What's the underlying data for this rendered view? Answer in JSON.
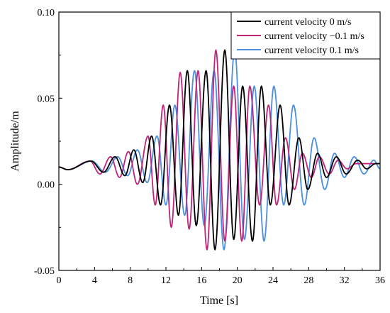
{
  "chart_data": {
    "type": "line",
    "xlabel": "Time [s]",
    "ylabel": "Amplitude/m",
    "xlim": [
      0,
      36
    ],
    "ylim": [
      -0.05,
      0.1
    ],
    "xticks": [
      "0",
      "4",
      "8",
      "12",
      "16",
      "20",
      "24",
      "28",
      "32",
      "36"
    ],
    "yticks": [
      "-0.05",
      "0.00",
      "0.05",
      "0.10"
    ],
    "legend_position": "top-right",
    "grid": false,
    "baseline": 0.01,
    "series": [
      {
        "name": "current velocity 0 m/s",
        "color": "#000000",
        "crests": [
          [
            3.6,
            0.0135
          ],
          [
            6.3,
            0.016
          ],
          [
            8.4,
            0.02
          ],
          [
            10.4,
            0.028
          ],
          [
            12.4,
            0.046
          ],
          [
            14.4,
            0.066
          ],
          [
            16.5,
            0.066
          ],
          [
            18.6,
            0.078
          ],
          [
            20.6,
            0.057
          ],
          [
            22.7,
            0.057
          ],
          [
            24.8,
            0.046
          ],
          [
            26.9,
            0.027
          ],
          [
            29.0,
            0.018
          ],
          [
            31.1,
            0.016
          ],
          [
            33.5,
            0.014
          ],
          [
            35.5,
            0.012
          ]
        ],
        "troughs": [
          [
            1.0,
            0.0085
          ],
          [
            5.0,
            0.007
          ],
          [
            7.4,
            0.005
          ],
          [
            9.4,
            0.001
          ],
          [
            11.4,
            -0.012
          ],
          [
            13.4,
            -0.018
          ],
          [
            15.4,
            -0.024
          ],
          [
            17.5,
            -0.038
          ],
          [
            19.6,
            -0.032
          ],
          [
            21.7,
            -0.033
          ],
          [
            23.7,
            -0.012
          ],
          [
            25.8,
            -0.012
          ],
          [
            27.9,
            -0.003
          ],
          [
            30.0,
            0.004
          ],
          [
            32.2,
            0.006
          ],
          [
            34.5,
            0.009
          ]
        ]
      },
      {
        "name": "current velocity −0.1 m/s",
        "color": "#c0247a",
        "crests": [
          [
            3.5,
            0.0135
          ],
          [
            5.8,
            0.016
          ],
          [
            7.8,
            0.019
          ],
          [
            10.0,
            0.028
          ],
          [
            11.7,
            0.046
          ],
          [
            13.6,
            0.065
          ],
          [
            15.6,
            0.066
          ],
          [
            17.6,
            0.078
          ],
          [
            19.6,
            0.057
          ],
          [
            21.4,
            0.057
          ],
          [
            23.5,
            0.046
          ],
          [
            25.4,
            0.027
          ],
          [
            27.3,
            0.018
          ],
          [
            29.2,
            0.016
          ],
          [
            31.3,
            0.014
          ],
          [
            33.3,
            0.012
          ]
        ],
        "troughs": [
          [
            1.0,
            0.0085
          ],
          [
            4.6,
            0.006
          ],
          [
            6.8,
            0.004
          ],
          [
            8.8,
            -0.0
          ],
          [
            10.8,
            -0.012
          ],
          [
            12.6,
            -0.025
          ],
          [
            14.6,
            -0.026
          ],
          [
            16.6,
            -0.038
          ],
          [
            18.6,
            -0.033
          ],
          [
            20.5,
            -0.033
          ],
          [
            22.5,
            -0.012
          ],
          [
            24.4,
            -0.012
          ],
          [
            26.4,
            -0.003
          ],
          [
            28.3,
            0.004
          ],
          [
            30.3,
            0.006
          ],
          [
            32.3,
            0.009
          ]
        ]
      },
      {
        "name": "current velocity 0.1 m/s",
        "color": "#4a8fe0",
        "crests": [
          [
            3.7,
            0.0135
          ],
          [
            6.6,
            0.016
          ],
          [
            8.8,
            0.02
          ],
          [
            11.0,
            0.028
          ],
          [
            13.0,
            0.046
          ],
          [
            15.2,
            0.066
          ],
          [
            17.4,
            0.066
          ],
          [
            19.7,
            0.078
          ],
          [
            21.9,
            0.057
          ],
          [
            24.1,
            0.057
          ],
          [
            26.3,
            0.046
          ],
          [
            28.6,
            0.027
          ],
          [
            30.9,
            0.018
          ],
          [
            33.1,
            0.016
          ],
          [
            35.3,
            0.014
          ]
        ],
        "troughs": [
          [
            1.0,
            0.0085
          ],
          [
            5.2,
            0.007
          ],
          [
            7.7,
            0.005
          ],
          [
            9.9,
            0.001
          ],
          [
            12.0,
            -0.012
          ],
          [
            14.1,
            -0.018
          ],
          [
            16.3,
            -0.024
          ],
          [
            18.5,
            -0.038
          ],
          [
            20.8,
            -0.032
          ],
          [
            23.0,
            -0.033
          ],
          [
            25.2,
            -0.012
          ],
          [
            27.5,
            -0.012
          ],
          [
            29.8,
            -0.003
          ],
          [
            32.0,
            0.004
          ],
          [
            34.2,
            0.006
          ],
          [
            36.0,
            0.009
          ]
        ]
      }
    ]
  }
}
